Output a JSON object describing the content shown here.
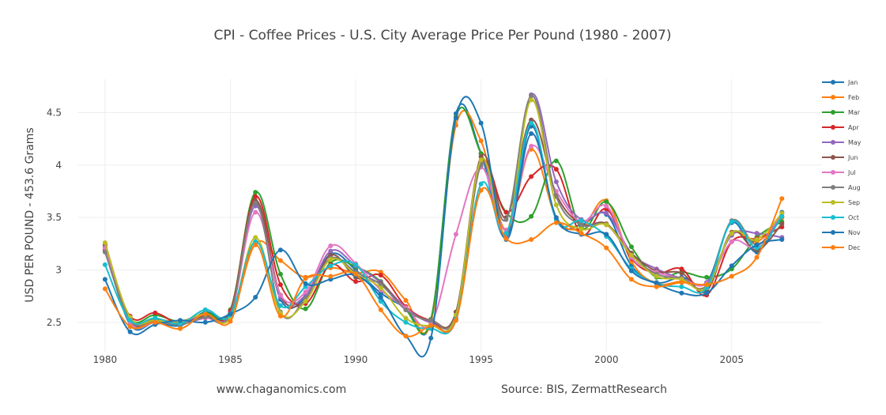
{
  "chart_data": {
    "type": "line",
    "title": "CPI - Coffee Prices - U.S. City Average Price Per Pound (1980 - 2007)",
    "ylabel": "USD PER POUND - 453.6 Grams",
    "xlabel": "",
    "xlim": [
      1978.9,
      2008.6
    ],
    "ylim": [
      2.22,
      4.82
    ],
    "x_ticks": [
      1980,
      1985,
      1990,
      1995,
      2000,
      2005
    ],
    "y_ticks": [
      2.5,
      3,
      3.5,
      4,
      4.5
    ],
    "grid": true,
    "legend": "right",
    "x": [
      1980,
      1981,
      1982,
      1983,
      1984,
      1985,
      1986,
      1987,
      1988,
      1989,
      1990,
      1991,
      1992,
      1993,
      1994,
      1995,
      1996,
      1997,
      1998,
      1999,
      2000,
      2001,
      2002,
      2003,
      2004,
      2005,
      2006,
      2007
    ],
    "series": [
      {
        "name": "Jan",
        "color": "#1f77b4",
        "values": [
          3.22,
          2.48,
          2.5,
          2.47,
          2.6,
          2.6,
          3.65,
          2.72,
          2.74,
          3.15,
          3.0,
          2.78,
          2.64,
          2.51,
          4.49,
          4.11,
          3.31,
          4.37,
          3.48,
          3.43,
          3.53,
          3.04,
          2.88,
          2.93,
          2.88,
          3.45,
          3.17,
          3.55
        ]
      },
      {
        "name": "Feb",
        "color": "#ff7f0e",
        "values": [
          3.2,
          2.53,
          2.53,
          2.51,
          2.58,
          2.55,
          3.25,
          3.09,
          2.93,
          3.02,
          2.97,
          2.98,
          2.71,
          2.5,
          4.38,
          4.23,
          3.38,
          4.15,
          3.5,
          3.4,
          3.66,
          3.08,
          2.87,
          2.89,
          2.85,
          3.34,
          3.27,
          3.5
        ]
      },
      {
        "name": "Mar",
        "color": "#2ca02c",
        "values": [
          3.19,
          2.54,
          2.57,
          2.51,
          2.59,
          2.62,
          3.74,
          2.96,
          2.63,
          3.07,
          3.03,
          2.89,
          2.62,
          2.53,
          4.46,
          4.11,
          3.55,
          3.51,
          4.04,
          3.4,
          3.65,
          3.22,
          2.93,
          2.98,
          2.93,
          3.01,
          3.31,
          3.46
        ]
      },
      {
        "name": "Apr",
        "color": "#d62728",
        "values": [
          3.18,
          2.56,
          2.59,
          2.49,
          2.57,
          2.61,
          3.7,
          2.86,
          2.68,
          3.05,
          2.89,
          2.95,
          2.65,
          2.52,
          2.53,
          4.01,
          3.55,
          3.89,
          3.96,
          3.34,
          3.58,
          3.11,
          2.97,
          3.01,
          2.76,
          3.27,
          3.3,
          3.41
        ]
      },
      {
        "name": "May",
        "color": "#9467bd",
        "values": [
          3.2,
          2.51,
          2.51,
          2.5,
          2.57,
          2.59,
          3.61,
          2.74,
          2.76,
          3.18,
          3.04,
          2.88,
          2.64,
          2.5,
          2.54,
          4.02,
          3.33,
          4.67,
          3.84,
          3.48,
          3.54,
          3.16,
          3.01,
          2.92,
          2.88,
          3.33,
          3.35,
          3.31
        ]
      },
      {
        "name": "Jun",
        "color": "#8c564b",
        "values": [
          3.24,
          2.51,
          2.53,
          2.49,
          2.56,
          2.59,
          3.66,
          2.76,
          2.71,
          3.14,
          2.93,
          2.87,
          2.62,
          2.52,
          2.6,
          4.08,
          3.5,
          4.43,
          3.72,
          3.44,
          3.44,
          3.16,
          2.99,
          2.97,
          2.8,
          3.36,
          3.19,
          3.44
        ]
      },
      {
        "name": "Jul",
        "color": "#e377c2",
        "values": [
          3.21,
          2.5,
          2.5,
          2.49,
          2.54,
          2.58,
          3.55,
          2.76,
          2.79,
          3.23,
          3.06,
          2.81,
          2.64,
          2.49,
          3.34,
          3.98,
          3.38,
          4.18,
          3.75,
          3.46,
          3.61,
          3.12,
          2.98,
          2.92,
          2.87,
          3.27,
          3.22,
          3.54
        ]
      },
      {
        "name": "Aug",
        "color": "#7f7f7f",
        "values": [
          3.17,
          2.52,
          2.51,
          2.48,
          2.55,
          2.58,
          3.64,
          2.6,
          2.73,
          3.11,
          2.98,
          2.86,
          2.62,
          2.52,
          2.57,
          4.0,
          3.48,
          4.66,
          3.7,
          3.43,
          3.43,
          3.14,
          2.96,
          2.92,
          2.85,
          3.47,
          3.24,
          3.51
        ]
      },
      {
        "name": "Sep",
        "color": "#bcbd22",
        "values": [
          3.26,
          2.55,
          2.52,
          2.51,
          2.58,
          2.54,
          3.31,
          2.59,
          2.7,
          3.1,
          2.96,
          2.83,
          2.54,
          2.47,
          2.57,
          4.05,
          3.35,
          4.62,
          3.62,
          3.39,
          3.43,
          3.14,
          2.94,
          2.91,
          2.83,
          3.35,
          3.29,
          3.54
        ]
      },
      {
        "name": "Oct",
        "color": "#17becf",
        "values": [
          3.05,
          2.52,
          2.54,
          2.49,
          2.62,
          2.57,
          3.27,
          2.66,
          2.84,
          3.04,
          3.05,
          2.7,
          2.5,
          2.44,
          2.53,
          3.82,
          3.35,
          4.4,
          3.48,
          3.47,
          3.32,
          3.01,
          2.87,
          2.84,
          2.83,
          3.46,
          3.21,
          3.51
        ]
      },
      {
        "name": "Nov",
        "color": "#1f77b4",
        "values": [
          2.91,
          2.41,
          2.48,
          2.52,
          2.5,
          2.58,
          2.74,
          3.19,
          2.87,
          2.91,
          2.95,
          2.74,
          2.37,
          2.35,
          4.45,
          4.4,
          3.29,
          4.3,
          3.5,
          3.34,
          3.34,
          2.99,
          2.87,
          2.78,
          2.78,
          3.04,
          3.24,
          3.29
        ]
      },
      {
        "name": "Dec",
        "color": "#ff7f0e",
        "values": [
          2.82,
          2.46,
          2.5,
          2.44,
          2.58,
          2.51,
          3.24,
          2.56,
          2.92,
          2.94,
          2.96,
          2.62,
          2.37,
          2.47,
          2.52,
          3.76,
          3.3,
          3.29,
          3.45,
          3.35,
          3.21,
          2.91,
          2.84,
          2.88,
          2.86,
          2.94,
          3.12,
          3.68
        ]
      }
    ]
  },
  "footer": {
    "left": "www.chaganomics.com",
    "right": "Source: BIS, ZermattResearch"
  }
}
